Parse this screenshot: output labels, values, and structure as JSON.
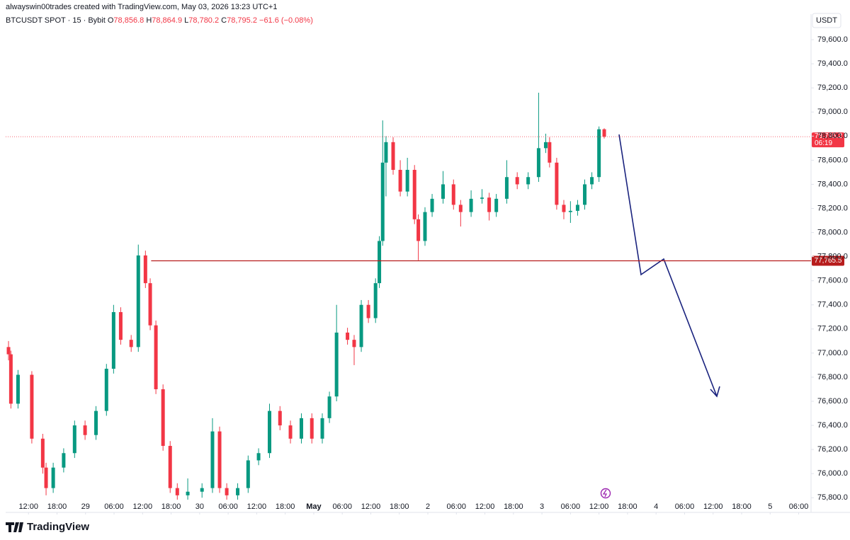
{
  "header": "alwayswin00trades created with TradingView.com, May 03, 2026 13:23 UTC+1",
  "chart_data": {
    "type": "candlestick",
    "symbol": "BTCUSDT SPOT · 15 · Bybit",
    "ohlc": [
      {
        "key": "O",
        "value": 78856.8,
        "label": "78,856.8"
      },
      {
        "key": "H",
        "value": 78864.9,
        "label": "78,864.9"
      },
      {
        "key": "L",
        "value": 78780.2,
        "label": "78,780.2"
      },
      {
        "key": "C",
        "value": 78795.2,
        "label": "78,795.2"
      }
    ],
    "change": {
      "value": -61.6,
      "label": "−61.6"
    },
    "change_pct": {
      "value": -0.08,
      "label": "(−0.08%)"
    },
    "currency": "USDT",
    "x": [
      7.8,
      8.3,
      9.8,
      12.7,
      15.0,
      15.7,
      17.2,
      19.4,
      21.7,
      23.9,
      26.2,
      28.4,
      29.9,
      31.4,
      33.6,
      35.1,
      36.6,
      37.6,
      38.8,
      40.3,
      41.8,
      43.3,
      45.5,
      48.5,
      50.7,
      52.2,
      53.7,
      56.0,
      58.2,
      60.4,
      62.7,
      64.9,
      67.1,
      69.4,
      71.6,
      73.8,
      75.3,
      76.8,
      79.1,
      80.5,
      82.0,
      83.5,
      85.0,
      85.8,
      86.5,
      87.2,
      88.7,
      90.2,
      91.7,
      93.2,
      94.0,
      95.4,
      96.9,
      99.2,
      101.4,
      102.9,
      105.1,
      107.4,
      108.9,
      110.4,
      112.6,
      114.8,
      117.1,
      119.3,
      120.8,
      121.6,
      123.1,
      124.6,
      126.0,
      127.5,
      129.0,
      130.5,
      132.0,
      133.1
    ],
    "open": [
      77050,
      76990,
      76580,
      76820,
      76290,
      76050,
      75880,
      76050,
      76170,
      76400,
      76320,
      76520,
      76870,
      77340,
      77110,
      77050,
      77810,
      77580,
      77230,
      76700,
      76230,
      75880,
      75820,
      75850,
      75880,
      76350,
      75880,
      75820,
      75880,
      76110,
      76170,
      76520,
      76400,
      76290,
      76460,
      76290,
      76460,
      76640,
      77170,
      77110,
      77050,
      77400,
      77290,
      77580,
      77930,
      78580,
      78750,
      78520,
      78340,
      78520,
      78110,
      77930,
      78170,
      78280,
      78400,
      78230,
      78170,
      78280,
      78290,
      78170,
      78280,
      78460,
      78400,
      78460,
      78700,
      78750,
      78580,
      78230,
      78170,
      78180,
      78230,
      78400,
      78460,
      78856.8
    ],
    "high": [
      77100,
      77020,
      76860,
      76850,
      76330,
      76090,
      76090,
      76210,
      76440,
      76440,
      76560,
      76910,
      77400,
      77380,
      77150,
      77900,
      77850,
      77620,
      77270,
      76740,
      76270,
      75920,
      75960,
      75920,
      76460,
      76390,
      75920,
      75920,
      76150,
      76210,
      76580,
      76560,
      76440,
      76500,
      76500,
      76500,
      76680,
      77400,
      77210,
      77150,
      77440,
      77440,
      77620,
      77970,
      78930,
      78800,
      78790,
      78600,
      78620,
      78560,
      78150,
      78210,
      78320,
      78510,
      78440,
      78270,
      78350,
      78360,
      78330,
      78320,
      78600,
      78500,
      78500,
      79160,
      78820,
      78790,
      78620,
      78270,
      78260,
      78270,
      78440,
      78500,
      78880,
      78864.9
    ],
    "low": [
      76940,
      76540,
      76540,
      76250,
      76000,
      75820,
      75840,
      76010,
      76130,
      76280,
      76280,
      76480,
      76830,
      77070,
      77010,
      77010,
      77540,
      77190,
      76660,
      76190,
      75840,
      75760,
      75780,
      75800,
      75840,
      75840,
      75760,
      75780,
      75840,
      76070,
      76130,
      76360,
      76250,
      76250,
      76250,
      76250,
      76420,
      76600,
      77070,
      76900,
      77010,
      77250,
      77250,
      77540,
      77890,
      78300,
      78480,
      78300,
      78300,
      78070,
      77770,
      77890,
      78130,
      78240,
      78190,
      78050,
      78130,
      78240,
      78100,
      78130,
      78240,
      78360,
      78360,
      78420,
      78660,
      78540,
      78190,
      78110,
      78080,
      78140,
      78190,
      78360,
      78420,
      78780.2
    ],
    "close": [
      76990,
      76580,
      76820,
      76290,
      76050,
      75880,
      76050,
      76170,
      76400,
      76320,
      76520,
      76870,
      77340,
      77110,
      77050,
      77810,
      77580,
      77230,
      76700,
      76230,
      75880,
      75820,
      75850,
      75880,
      76350,
      75880,
      75820,
      75880,
      76110,
      76170,
      76520,
      76400,
      76290,
      76460,
      76290,
      76460,
      76640,
      77170,
      77110,
      77050,
      77400,
      77290,
      77580,
      77930,
      78580,
      78750,
      78520,
      78340,
      78520,
      78110,
      77930,
      78170,
      78280,
      78400,
      78230,
      78170,
      78280,
      78290,
      78170,
      78280,
      78460,
      78400,
      78460,
      78700,
      78750,
      78580,
      78230,
      78170,
      78180,
      78230,
      78400,
      78460,
      78856.8,
      78795.2
    ],
    "up_color": "#089981",
    "down_color": "#f23645",
    "grid": false,
    "xlim": [
      7.2,
      176.6
    ],
    "xticks": [
      {
        "value": 12,
        "label": "12:00"
      },
      {
        "value": 18,
        "label": "18:00"
      },
      {
        "value": 24,
        "label": "29"
      },
      {
        "value": 30,
        "label": "06:00"
      },
      {
        "value": 36,
        "label": "12:00"
      },
      {
        "value": 42,
        "label": "18:00"
      },
      {
        "value": 48,
        "label": "30"
      },
      {
        "value": 54,
        "label": "06:00"
      },
      {
        "value": 60,
        "label": "12:00"
      },
      {
        "value": 66,
        "label": "18:00"
      },
      {
        "value": 72,
        "label": "May"
      },
      {
        "value": 78,
        "label": "06:00"
      },
      {
        "value": 84,
        "label": "12:00"
      },
      {
        "value": 90,
        "label": "18:00"
      },
      {
        "value": 96,
        "label": "2"
      },
      {
        "value": 102,
        "label": "06:00"
      },
      {
        "value": 108,
        "label": "12:00"
      },
      {
        "value": 114,
        "label": "18:00"
      },
      {
        "value": 120,
        "label": "3"
      },
      {
        "value": 126,
        "label": "06:00"
      },
      {
        "value": 132,
        "label": "12:00"
      },
      {
        "value": 138,
        "label": "18:00"
      },
      {
        "value": 144,
        "label": "4"
      },
      {
        "value": 150,
        "label": "06:00"
      },
      {
        "value": 156,
        "label": "12:00"
      },
      {
        "value": 162,
        "label": "18:00"
      },
      {
        "value": 168,
        "label": "5"
      },
      {
        "value": 174,
        "label": "06:00"
      }
    ],
    "ylim": [
      75690,
      79800
    ],
    "yticks": [
      {
        "value": 75800,
        "label": "75,800.0"
      },
      {
        "value": 76000,
        "label": "76,000.0"
      },
      {
        "value": 76200,
        "label": "76,200.0"
      },
      {
        "value": 76400,
        "label": "76,400.0"
      },
      {
        "value": 76600,
        "label": "76,600.0"
      },
      {
        "value": 76800,
        "label": "76,800.0"
      },
      {
        "value": 77000,
        "label": "77,000.0"
      },
      {
        "value": 77200,
        "label": "77,200.0"
      },
      {
        "value": 77400,
        "label": "77,400.0"
      },
      {
        "value": 77600,
        "label": "77,600.0"
      },
      {
        "value": 77800,
        "label": "77,800.0"
      },
      {
        "value": 78000,
        "label": "78,000.0"
      },
      {
        "value": 78200,
        "label": "78,200.0"
      },
      {
        "value": 78400,
        "label": "78,400.0"
      },
      {
        "value": 78600,
        "label": "78,600.0"
      },
      {
        "value": 78800,
        "label": "78,800.0"
      },
      {
        "value": 79000,
        "label": "79,000.0"
      },
      {
        "value": 79200,
        "label": "79,200.0"
      },
      {
        "value": 79400,
        "label": "79,400.0"
      },
      {
        "value": 79600,
        "label": "79,600.0"
      }
    ],
    "last_price": {
      "value": 78795.2,
      "label": "78,795.2",
      "countdown": "06:19"
    },
    "level": {
      "value": 77765.5,
      "label": "77,765.5",
      "from_x": 37.8,
      "color": "#b71c1c"
    }
  },
  "footer": {
    "logo": "TradingView"
  }
}
